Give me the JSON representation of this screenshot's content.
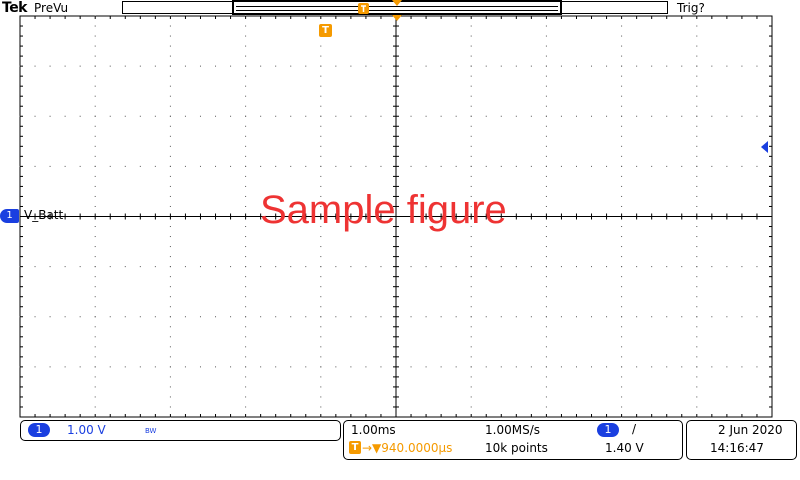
{
  "header": {
    "brand": "Tek",
    "acquisition_mode": "PreVu",
    "trigger_status": "Trig?"
  },
  "markers": {
    "trigger_position": "T",
    "channel_1_number": "1",
    "channel_1_label": "V_Batt"
  },
  "watermark": "Sample figure",
  "channel_readout": {
    "channel": "1",
    "vertical_scale": "1.00 V",
    "bandwidth_limit": "BW"
  },
  "timebase_readout": {
    "horizontal_scale": "1.00ms",
    "sample_rate": "1.00MS/s",
    "trigger_marker": "T",
    "trigger_delay": "→▼940.0000µs",
    "record_length": "10k points",
    "trigger_source": "1",
    "trigger_slope": "/",
    "trigger_level": "1.40 V"
  },
  "datetime": {
    "date": "2 Jun  2020",
    "time": "14:16:47"
  },
  "colors": {
    "channel_1": "#1a3fe0",
    "trigger": "#f59a00",
    "watermark": "#ee3333"
  }
}
